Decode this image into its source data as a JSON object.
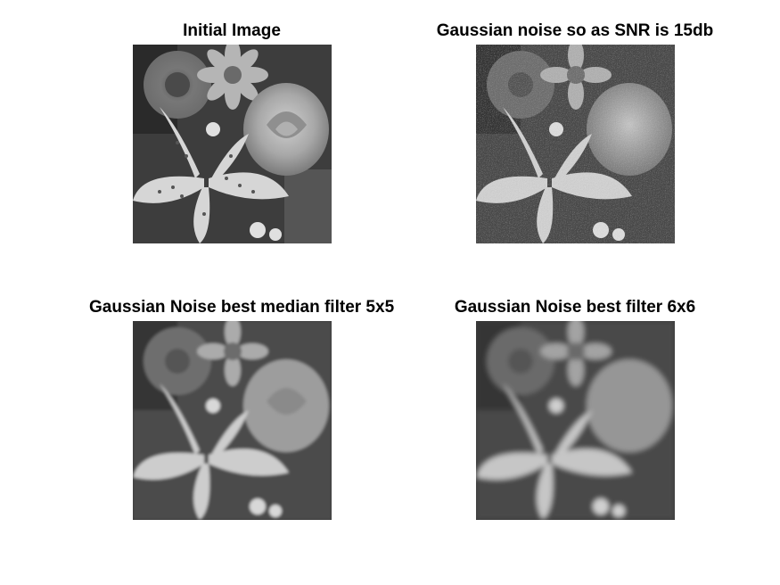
{
  "figure": {
    "panels": [
      {
        "title": "Initial Image",
        "variant": "original"
      },
      {
        "title": "Gaussian noise so as SNR is 15db",
        "variant": "noisy"
      },
      {
        "title": "Gaussian Noise best median filter 5x5",
        "variant": "median"
      },
      {
        "title": "Gaussian Noise best filter 6x6",
        "variant": "mean"
      }
    ]
  }
}
